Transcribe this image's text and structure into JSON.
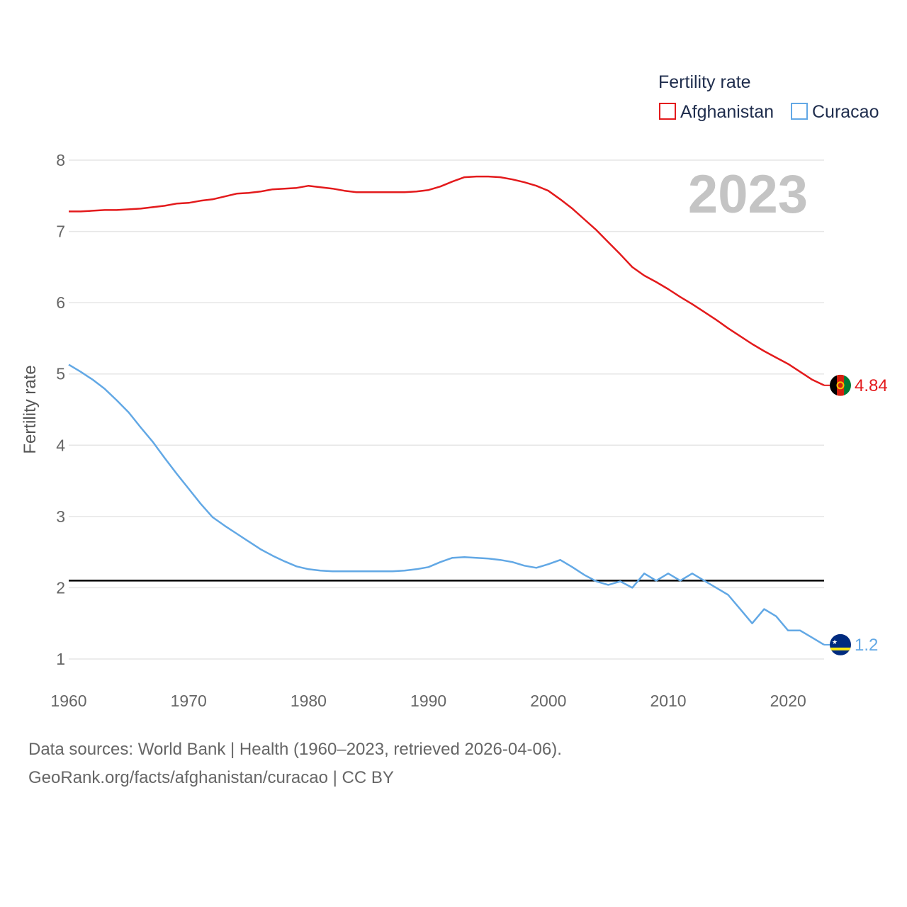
{
  "chart_data": {
    "type": "line",
    "ylabel": "Fertility rate",
    "xlim": [
      1960,
      2023
    ],
    "ylim": [
      0.7,
      8.3
    ],
    "x_ticks": [
      "1960",
      "1970",
      "1980",
      "1990",
      "2000",
      "2010",
      "2020"
    ],
    "y_ticks": [
      "1",
      "2",
      "3",
      "4",
      "5",
      "6",
      "7",
      "8"
    ],
    "current_year": "2023",
    "legend": {
      "title": "Fertility rate",
      "placement": "top-right"
    },
    "reference_line": {
      "value": 2.1,
      "color": "#000000"
    },
    "x": [
      1960,
      1961,
      1962,
      1963,
      1964,
      1965,
      1966,
      1967,
      1968,
      1969,
      1970,
      1971,
      1972,
      1973,
      1974,
      1975,
      1976,
      1977,
      1978,
      1979,
      1980,
      1981,
      1982,
      1983,
      1984,
      1985,
      1986,
      1987,
      1988,
      1989,
      1990,
      1991,
      1992,
      1993,
      1994,
      1995,
      1996,
      1997,
      1998,
      1999,
      2000,
      2001,
      2002,
      2003,
      2004,
      2005,
      2006,
      2007,
      2008,
      2009,
      2010,
      2011,
      2012,
      2013,
      2014,
      2015,
      2016,
      2017,
      2018,
      2019,
      2020,
      2021,
      2022,
      2023
    ],
    "series": [
      {
        "name": "Afghanistan",
        "color": "#e31a1c",
        "end_label": "4.84",
        "values": [
          7.28,
          7.28,
          7.29,
          7.3,
          7.3,
          7.31,
          7.32,
          7.34,
          7.36,
          7.39,
          7.4,
          7.43,
          7.45,
          7.49,
          7.53,
          7.54,
          7.56,
          7.59,
          7.6,
          7.61,
          7.64,
          7.62,
          7.6,
          7.57,
          7.55,
          7.55,
          7.55,
          7.55,
          7.55,
          7.56,
          7.58,
          7.63,
          7.7,
          7.76,
          7.77,
          7.77,
          7.76,
          7.73,
          7.69,
          7.64,
          7.57,
          7.45,
          7.32,
          7.17,
          7.02,
          6.85,
          6.68,
          6.5,
          6.38,
          6.29,
          6.19,
          6.08,
          5.98,
          5.87,
          5.76,
          5.64,
          5.53,
          5.42,
          5.32,
          5.23,
          5.14,
          5.03,
          4.92,
          4.84
        ]
      },
      {
        "name": "Curacao",
        "color": "#62a8e5",
        "end_label": "1.2",
        "values": [
          5.13,
          5.03,
          4.92,
          4.79,
          4.63,
          4.46,
          4.25,
          4.05,
          3.82,
          3.6,
          3.39,
          3.18,
          2.99,
          2.87,
          2.76,
          2.65,
          2.54,
          2.45,
          2.37,
          2.3,
          2.26,
          2.24,
          2.23,
          2.23,
          2.23,
          2.23,
          2.23,
          2.23,
          2.24,
          2.26,
          2.29,
          2.36,
          2.42,
          2.43,
          2.42,
          2.41,
          2.39,
          2.36,
          2.31,
          2.28,
          2.33,
          2.39,
          2.29,
          2.18,
          2.09,
          2.04,
          2.09,
          2.0,
          2.2,
          2.1,
          2.2,
          2.1,
          2.2,
          2.1,
          2.0,
          1.9,
          1.7,
          1.5,
          1.7,
          1.6,
          1.4,
          1.4,
          1.3,
          1.2
        ]
      }
    ]
  },
  "footer": {
    "line1": "Data sources: World Bank | Health (1960–2023, retrieved 2026-04-06).",
    "line2": "GeoRank.org/facts/afghanistan/curacao | CC BY"
  }
}
